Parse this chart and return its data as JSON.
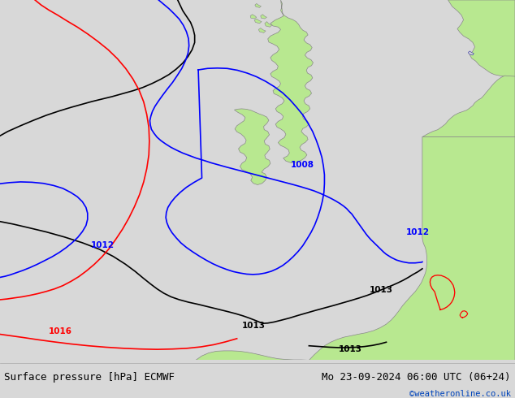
{
  "title_left": "Surface pressure [hPa] ECMWF",
  "title_right": "Mo 23-09-2024 06:00 UTC (06+24)",
  "watermark": "©weatheronline.co.uk",
  "bg_color": "#d8d8d8",
  "land_color": "#b8e890",
  "land_border_color": "#888888",
  "figsize": [
    6.34,
    4.9
  ],
  "dpi": 100,
  "bottom_bar_color": "#e8e8e8",
  "bottom_bar_height": 0.095,
  "title_fontsize": 9.0,
  "watermark_color": "#0044bb",
  "contour_label_fontsize": 7.5,
  "line_width": 1.2
}
